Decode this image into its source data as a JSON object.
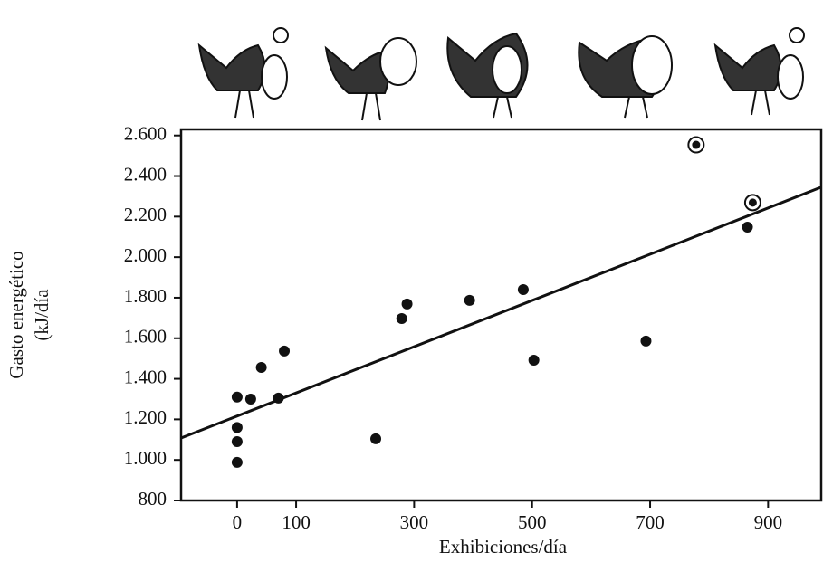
{
  "chart_data": {
    "type": "scatter",
    "xlabel": "Exhibiciones/día",
    "ylabel": [
      "Gasto energético",
      "(kJ/día"
    ],
    "xlim": [
      -95,
      990
    ],
    "ylim": [
      800,
      2630
    ],
    "xticks": [
      0,
      100,
      300,
      500,
      700,
      900
    ],
    "yticks": [
      800,
      {
        "value": 1000,
        "label": "1.000"
      },
      {
        "value": 1200,
        "label": "1.200"
      },
      {
        "value": 1400,
        "label": "1.400"
      },
      {
        "value": 1600,
        "label": "1.600"
      },
      {
        "value": 1800,
        "label": "1.800"
      },
      {
        "value": 2000,
        "label": "2.000"
      },
      {
        "value": 2200,
        "label": "2.200"
      },
      {
        "value": 2400,
        "label": "2.400"
      },
      {
        "value": 2600,
        "label": "2.600"
      }
    ],
    "points": {
      "color": "#111111",
      "x": [
        0,
        0,
        0,
        0,
        23,
        41,
        70,
        80,
        235,
        279,
        288,
        394,
        485,
        503,
        693,
        865
      ],
      "y": [
        1310,
        1160,
        1090,
        988,
        1300,
        1456,
        1305,
        1537,
        1104,
        1697,
        1769,
        1787,
        1840,
        1492,
        1586,
        2148
      ]
    },
    "circled_points": {
      "color": "#111111",
      "x": [
        778,
        874
      ],
      "y": [
        2554,
        2269
      ]
    },
    "fit_line": {
      "color": "#111111",
      "x": [
        -95,
        990
      ],
      "y": [
        1108,
        2345
      ]
    }
  }
}
